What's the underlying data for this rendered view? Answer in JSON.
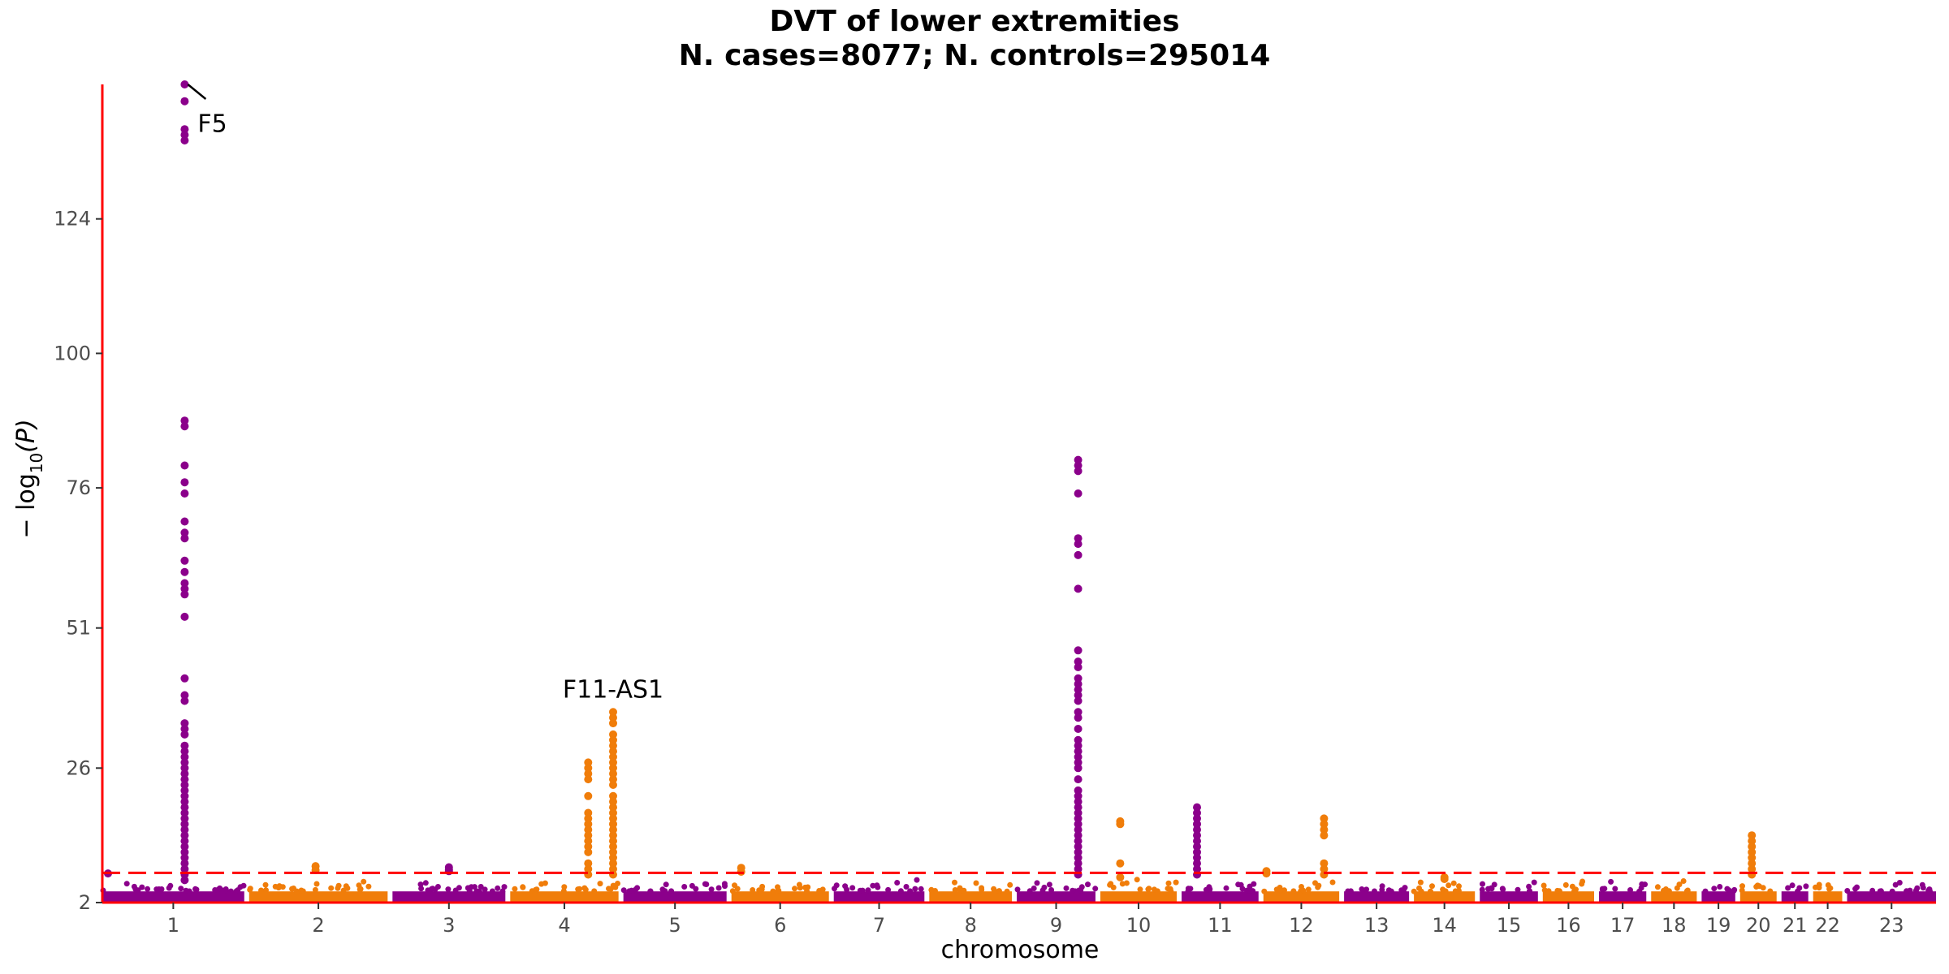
{
  "chart_data": {
    "type": "scatter",
    "subtype": "manhattan",
    "title": "DVT of lower extremities",
    "subtitle": "N. cases=8077; N. controls=295014",
    "xlabel": "chromosome",
    "ylabel": "−log10(P)",
    "ylabel_main": "− log",
    "ylabel_sub": "10",
    "ylabel_paren": "(P)",
    "ylim": [
      2,
      148
    ],
    "yticks": [
      2,
      26,
      51,
      76,
      100,
      124
    ],
    "grid": false,
    "significance_line": {
      "y": 7.3,
      "style": "dashed",
      "color": "#ff0000"
    },
    "axis_color": "#ff0000",
    "colors": {
      "odd": "#8b008b",
      "even": "#f07d0a"
    },
    "chromosomes": [
      {
        "label": "1",
        "width": 249,
        "baseline": 4.0
      },
      {
        "label": "2",
        "width": 243,
        "baseline": 4.0
      },
      {
        "label": "3",
        "width": 198,
        "baseline": 4.0
      },
      {
        "label": "4",
        "width": 190,
        "baseline": 4.0
      },
      {
        "label": "5",
        "width": 181,
        "baseline": 4.0
      },
      {
        "label": "6",
        "width": 171,
        "baseline": 4.0
      },
      {
        "label": "7",
        "width": 159,
        "baseline": 4.0
      },
      {
        "label": "8",
        "width": 145,
        "baseline": 4.0
      },
      {
        "label": "9",
        "width": 138,
        "baseline": 4.0
      },
      {
        "label": "10",
        "width": 134,
        "baseline": 4.0
      },
      {
        "label": "11",
        "width": 135,
        "baseline": 4.0
      },
      {
        "label": "12",
        "width": 133,
        "baseline": 4.0
      },
      {
        "label": "13",
        "width": 114,
        "baseline": 4.0
      },
      {
        "label": "14",
        "width": 107,
        "baseline": 4.0
      },
      {
        "label": "15",
        "width": 102,
        "baseline": 4.0
      },
      {
        "label": "16",
        "width": 90,
        "baseline": 4.0
      },
      {
        "label": "17",
        "width": 83,
        "baseline": 4.0
      },
      {
        "label": "18",
        "width": 80,
        "baseline": 4.0
      },
      {
        "label": "19",
        "width": 59,
        "baseline": 4.0
      },
      {
        "label": "20",
        "width": 64,
        "baseline": 4.0
      },
      {
        "label": "21",
        "width": 47,
        "baseline": 4.0
      },
      {
        "label": "22",
        "width": 51,
        "baseline": 4.0
      },
      {
        "label": "23",
        "width": 156,
        "baseline": 4.0
      }
    ],
    "peaks": [
      {
        "chr": "1",
        "pos": 0.58,
        "values": [
          148,
          145,
          140,
          139,
          138,
          88,
          87,
          80,
          77,
          75,
          70,
          68,
          67,
          63,
          61,
          59,
          58,
          57,
          53,
          42,
          39,
          38,
          34,
          33,
          32,
          30,
          29,
          28,
          27,
          26,
          25,
          24,
          23,
          22,
          21,
          20,
          19,
          18,
          17,
          16,
          15,
          14,
          13,
          12,
          11,
          10,
          9,
          8,
          7,
          6
        ]
      },
      {
        "chr": "1",
        "pos": 0.04,
        "values": [
          7.2
        ]
      },
      {
        "chr": "2",
        "pos": 0.48,
        "values": [
          8.5,
          7.8
        ]
      },
      {
        "chr": "3",
        "pos": 0.5,
        "values": [
          8.3,
          7.9,
          7.6
        ]
      },
      {
        "chr": "4",
        "pos": 0.72,
        "values": [
          27,
          26,
          25,
          24,
          21,
          18,
          17,
          16,
          15,
          14,
          13,
          12,
          11,
          9,
          8,
          7
        ]
      },
      {
        "chr": "4",
        "pos": 0.95,
        "values": [
          36,
          35,
          34,
          32,
          31,
          30,
          29,
          28,
          27,
          26,
          25,
          24,
          23,
          21,
          20,
          19,
          18,
          17,
          16,
          15,
          14,
          13,
          12,
          11,
          10,
          9,
          8,
          7
        ]
      },
      {
        "chr": "6",
        "pos": 0.1,
        "values": [
          8.2,
          7.5
        ]
      },
      {
        "chr": "9",
        "pos": 0.78,
        "values": [
          81,
          80,
          79,
          75,
          67,
          66,
          64,
          58,
          47,
          45,
          44,
          42,
          41,
          40,
          39,
          38,
          36,
          35,
          33,
          31,
          30,
          29,
          28,
          27,
          26,
          24,
          22,
          21,
          20,
          19,
          18,
          17,
          16,
          15,
          14,
          13,
          12,
          11,
          10,
          9,
          8,
          7
        ]
      },
      {
        "chr": "10",
        "pos": 0.26,
        "values": [
          16.5,
          16.0,
          9.0,
          6.5
        ]
      },
      {
        "chr": "11",
        "pos": 0.2,
        "values": [
          19,
          18,
          17,
          16,
          15,
          14,
          13,
          12,
          11,
          10,
          9,
          8,
          7
        ]
      },
      {
        "chr": "12",
        "pos": 0.04,
        "values": [
          7.6,
          7.2
        ]
      },
      {
        "chr": "12",
        "pos": 0.8,
        "values": [
          17,
          16,
          15,
          14,
          9,
          8,
          7
        ]
      },
      {
        "chr": "14",
        "pos": 0.5,
        "values": [
          6.5,
          6.2
        ]
      },
      {
        "chr": "20",
        "pos": 0.32,
        "values": [
          14,
          13,
          12,
          11,
          10,
          9,
          8,
          7
        ]
      }
    ],
    "annotations": [
      {
        "text": "F5",
        "chr": "1",
        "pos": 0.58,
        "y": 148,
        "label_y": 141
      },
      {
        "text": "F11-AS1",
        "chr": "4",
        "pos": 0.95,
        "y": 36,
        "label_y": 38
      }
    ]
  }
}
